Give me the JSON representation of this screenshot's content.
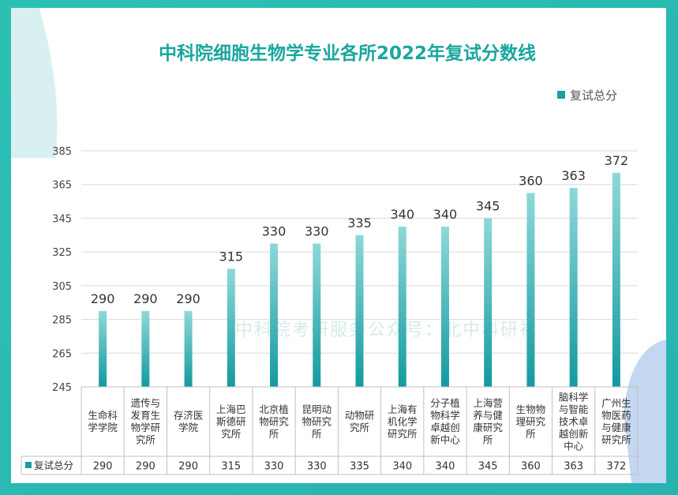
{
  "chart_data": {
    "type": "bar",
    "title": "中科院细胞生物学专业各所2022年复试分数线",
    "legend_label": "复试总分",
    "legend_position": "top-right",
    "ylim": [
      245,
      385
    ],
    "yticks": [
      245,
      265,
      285,
      305,
      325,
      345,
      365,
      385
    ],
    "grid": true,
    "categories": [
      [
        "生命科",
        "学学院"
      ],
      [
        "遗传与",
        "发育生",
        "物学研",
        "究所"
      ],
      [
        "存济医",
        "学院"
      ],
      [
        "上海巴",
        "斯德研",
        "究所"
      ],
      [
        "北京植",
        "物研究",
        "所"
      ],
      [
        "昆明动",
        "物研究",
        "所"
      ],
      [
        "动物研",
        "究所"
      ],
      [
        "上海有",
        "机化学",
        "研究所"
      ],
      [
        "分子植",
        "物科学",
        "卓越创",
        "新中心"
      ],
      [
        "上海营",
        "养与健",
        "康研究",
        "所"
      ],
      [
        "生物物",
        "理研究",
        "所"
      ],
      [
        "脑科学",
        "与智能",
        "技术卓",
        "越创新",
        "中心"
      ],
      [
        "广州生",
        "物医药",
        "与健康",
        "研究所"
      ]
    ],
    "values": [
      290,
      290,
      290,
      315,
      330,
      330,
      335,
      340,
      340,
      345,
      360,
      363,
      372
    ],
    "table_row_label": "复试总分",
    "watermark": "中科院考研服务公众号：北中科研社"
  },
  "colors": {
    "frame": "#2bbdb0",
    "bar_top": "#8ed8d8",
    "bar_bottom": "#139aa0",
    "title": "#1aa79f",
    "text": "#333333",
    "grid": "#d9d9d9"
  }
}
